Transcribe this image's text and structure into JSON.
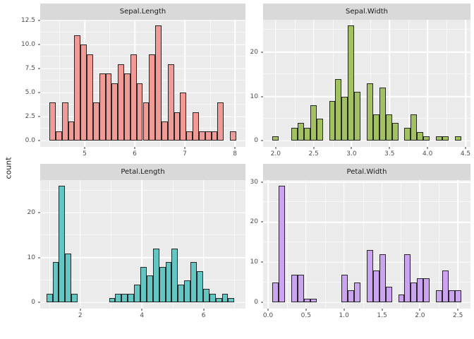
{
  "figure": {
    "y_axis_title": "count",
    "background": "#ffffff",
    "panel_background": "#ebebeb",
    "strip_background": "#d9d9d9",
    "gridline_color": "#ffffff",
    "bar_outline_color": "#262626",
    "tick_label_color": "#4d4d4d",
    "strip_text_color": "#1a1a1a"
  },
  "chart_data": [
    {
      "type": "bar",
      "subtype": "histogram",
      "title": "Sepal.Length",
      "fill": "#f29b96",
      "bin_start": 4.3,
      "bin_width": 0.124138,
      "counts": [
        4,
        1,
        4,
        2,
        11,
        10,
        9,
        4,
        7,
        7,
        6,
        8,
        7,
        9,
        6,
        4,
        9,
        12,
        2,
        8,
        3,
        5,
        1,
        3,
        1,
        1,
        1,
        4,
        0,
        1
      ],
      "x": {
        "min": 4.114,
        "max": 8.21,
        "majors": [
          5,
          6,
          7,
          8
        ],
        "labels": [
          "5",
          "6",
          "7",
          "8"
        ],
        "minors": [
          4.5,
          5.5,
          6.5,
          7.5
        ]
      },
      "y": {
        "min": -0.63,
        "max": 12.6,
        "majors": [
          0,
          2.5,
          5,
          7.5,
          10,
          12.5
        ],
        "labels": [
          "0.0",
          "2.5",
          "5.0",
          "7.5",
          "10.0",
          "12.5"
        ],
        "minors": [
          1.25,
          3.75,
          6.25,
          8.75,
          11.25
        ]
      }
    },
    {
      "type": "bar",
      "subtype": "histogram",
      "title": "Sepal.Width",
      "fill": "#a2c261",
      "bin_start": 1.95862,
      "bin_width": 0.082759,
      "counts": [
        1,
        0,
        0,
        3,
        4,
        3,
        8,
        5,
        0,
        9,
        14,
        10,
        26,
        11,
        0,
        13,
        6,
        12,
        6,
        4,
        0,
        3,
        6,
        2,
        1,
        0,
        1,
        1,
        0,
        1
      ],
      "x": {
        "min": 1.835,
        "max": 4.565,
        "majors": [
          2.0,
          2.5,
          3.0,
          3.5,
          4.0,
          4.5
        ],
        "labels": [
          "2.0",
          "2.5",
          "3.0",
          "3.5",
          "4.0",
          "4.5"
        ],
        "minors": [
          2.25,
          2.75,
          3.25,
          3.75,
          4.25
        ]
      },
      "y": {
        "min": -1.365,
        "max": 27.3,
        "majors": [
          0,
          10,
          20
        ],
        "labels": [
          "0",
          "10",
          "20"
        ],
        "minors": [
          5,
          15,
          25
        ]
      }
    },
    {
      "type": "bar",
      "subtype": "histogram",
      "title": "Petal.Length",
      "fill": "#64c6c3",
      "bin_start": 0.89828,
      "bin_width": 0.203448,
      "counts": [
        2,
        9,
        26,
        11,
        2,
        0,
        0,
        0,
        0,
        0,
        1,
        2,
        2,
        2,
        4,
        8,
        6,
        12,
        8,
        9,
        12,
        4,
        5,
        9,
        7,
        3,
        2,
        1,
        2,
        1
      ],
      "x": {
        "min": 0.7,
        "max": 7.36,
        "majors": [
          2,
          4,
          6
        ],
        "labels": [
          "2",
          "4",
          "6"
        ],
        "minors": [
          1,
          3,
          5,
          7
        ]
      },
      "y": {
        "min": -1.365,
        "max": 27.3,
        "majors": [
          0,
          10,
          20
        ],
        "labels": [
          "0",
          "10",
          "20"
        ],
        "minors": [
          5,
          15,
          25
        ]
      }
    },
    {
      "type": "bar",
      "subtype": "histogram",
      "title": "Petal.Width",
      "fill": "#cba3f0",
      "bin_start": 0.05862,
      "bin_width": 0.082759,
      "counts": [
        5,
        29,
        0,
        7,
        7,
        1,
        1,
        0,
        0,
        0,
        0,
        7,
        3,
        5,
        0,
        13,
        8,
        12,
        4,
        0,
        2,
        12,
        5,
        6,
        6,
        0,
        3,
        8,
        3,
        3
      ],
      "x": {
        "min": -0.065,
        "max": 2.665,
        "majors": [
          0.0,
          0.5,
          1.0,
          1.5,
          2.0,
          2.5
        ],
        "labels": [
          "0.0",
          "0.5",
          "1.0",
          "1.5",
          "2.0",
          "2.5"
        ],
        "minors": [
          0.25,
          0.75,
          1.25,
          1.75,
          2.25
        ]
      },
      "y": {
        "min": -1.5225,
        "max": 30.45,
        "majors": [
          0,
          10,
          20,
          30
        ],
        "labels": [
          "0",
          "10",
          "20",
          "30"
        ],
        "minors": [
          5,
          15,
          25
        ]
      }
    }
  ]
}
